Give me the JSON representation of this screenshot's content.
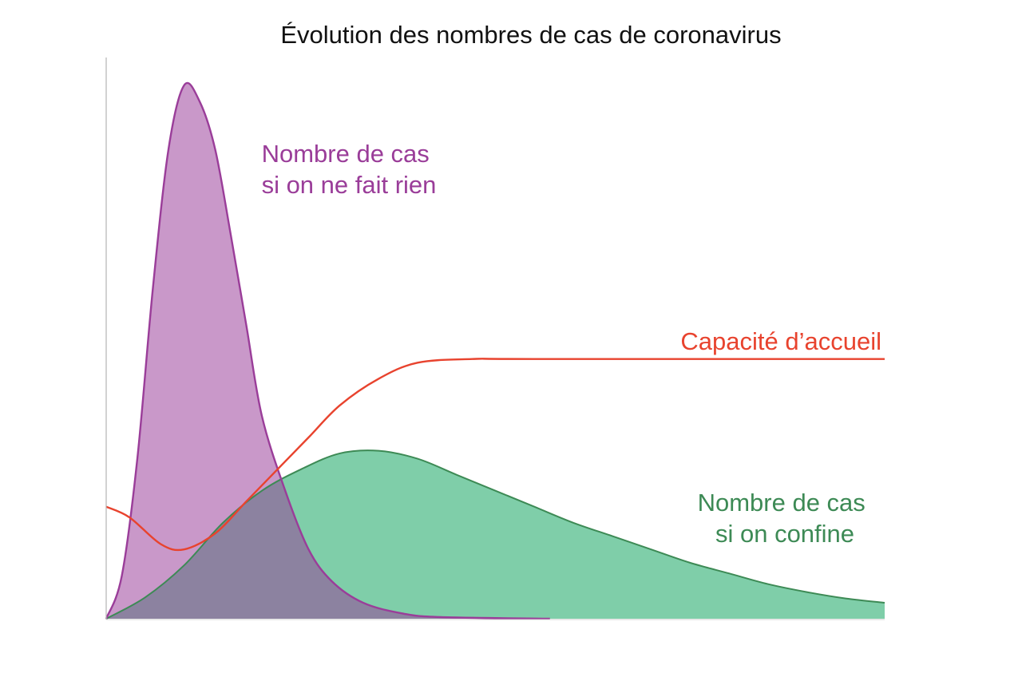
{
  "chart_data": {
    "type": "area",
    "title": "Évolution des nombres de cas de coronavirus",
    "xlabel": "",
    "ylabel": "",
    "x_range": [
      0,
      100
    ],
    "y_range": [
      0,
      100
    ],
    "grid": false,
    "series": [
      {
        "name": "Nombre de cas si on ne fait rien",
        "label_lines": [
          "Nombre de cas",
          "si on ne fait rien"
        ],
        "kind": "area",
        "color": "#9a3d99",
        "fill": "#c998c9",
        "points": [
          [
            0,
            0
          ],
          [
            2,
            8
          ],
          [
            4,
            30
          ],
          [
            6,
            62
          ],
          [
            8,
            88
          ],
          [
            10,
            100
          ],
          [
            12,
            97
          ],
          [
            14,
            88
          ],
          [
            16,
            72
          ],
          [
            18,
            55
          ],
          [
            20,
            38
          ],
          [
            23,
            24
          ],
          [
            26,
            13
          ],
          [
            29,
            7
          ],
          [
            33,
            3
          ],
          [
            38,
            1
          ],
          [
            43,
            0.3
          ],
          [
            57,
            0
          ]
        ]
      },
      {
        "name": "Nombre de cas si on confine",
        "label_lines": [
          "Nombre de cas",
          "si on confine"
        ],
        "kind": "area",
        "color": "#3d8a55",
        "fill": "#7fcea9",
        "points": [
          [
            0,
            0
          ],
          [
            5,
            4
          ],
          [
            10,
            10
          ],
          [
            15,
            18
          ],
          [
            20,
            24
          ],
          [
            25,
            28
          ],
          [
            30,
            31
          ],
          [
            35,
            31.5
          ],
          [
            40,
            30
          ],
          [
            45,
            27
          ],
          [
            50,
            24
          ],
          [
            55,
            21
          ],
          [
            60,
            18
          ],
          [
            65,
            15.5
          ],
          [
            70,
            13
          ],
          [
            75,
            10.5
          ],
          [
            80,
            8.5
          ],
          [
            85,
            6.5
          ],
          [
            90,
            5
          ],
          [
            95,
            3.8
          ],
          [
            100,
            3
          ]
        ]
      },
      {
        "name": "Capacité d'accueil",
        "label_lines": [
          "Capacité d’accueil"
        ],
        "kind": "line",
        "color": "#e8432e",
        "points": [
          [
            0,
            21
          ],
          [
            3,
            19
          ],
          [
            7,
            14
          ],
          [
            10,
            13
          ],
          [
            14,
            16
          ],
          [
            18,
            22
          ],
          [
            22,
            28
          ],
          [
            26,
            34
          ],
          [
            30,
            40
          ],
          [
            35,
            45
          ],
          [
            40,
            48
          ],
          [
            47,
            48.7
          ],
          [
            55,
            48.7
          ],
          [
            100,
            48.7
          ]
        ]
      }
    ]
  }
}
